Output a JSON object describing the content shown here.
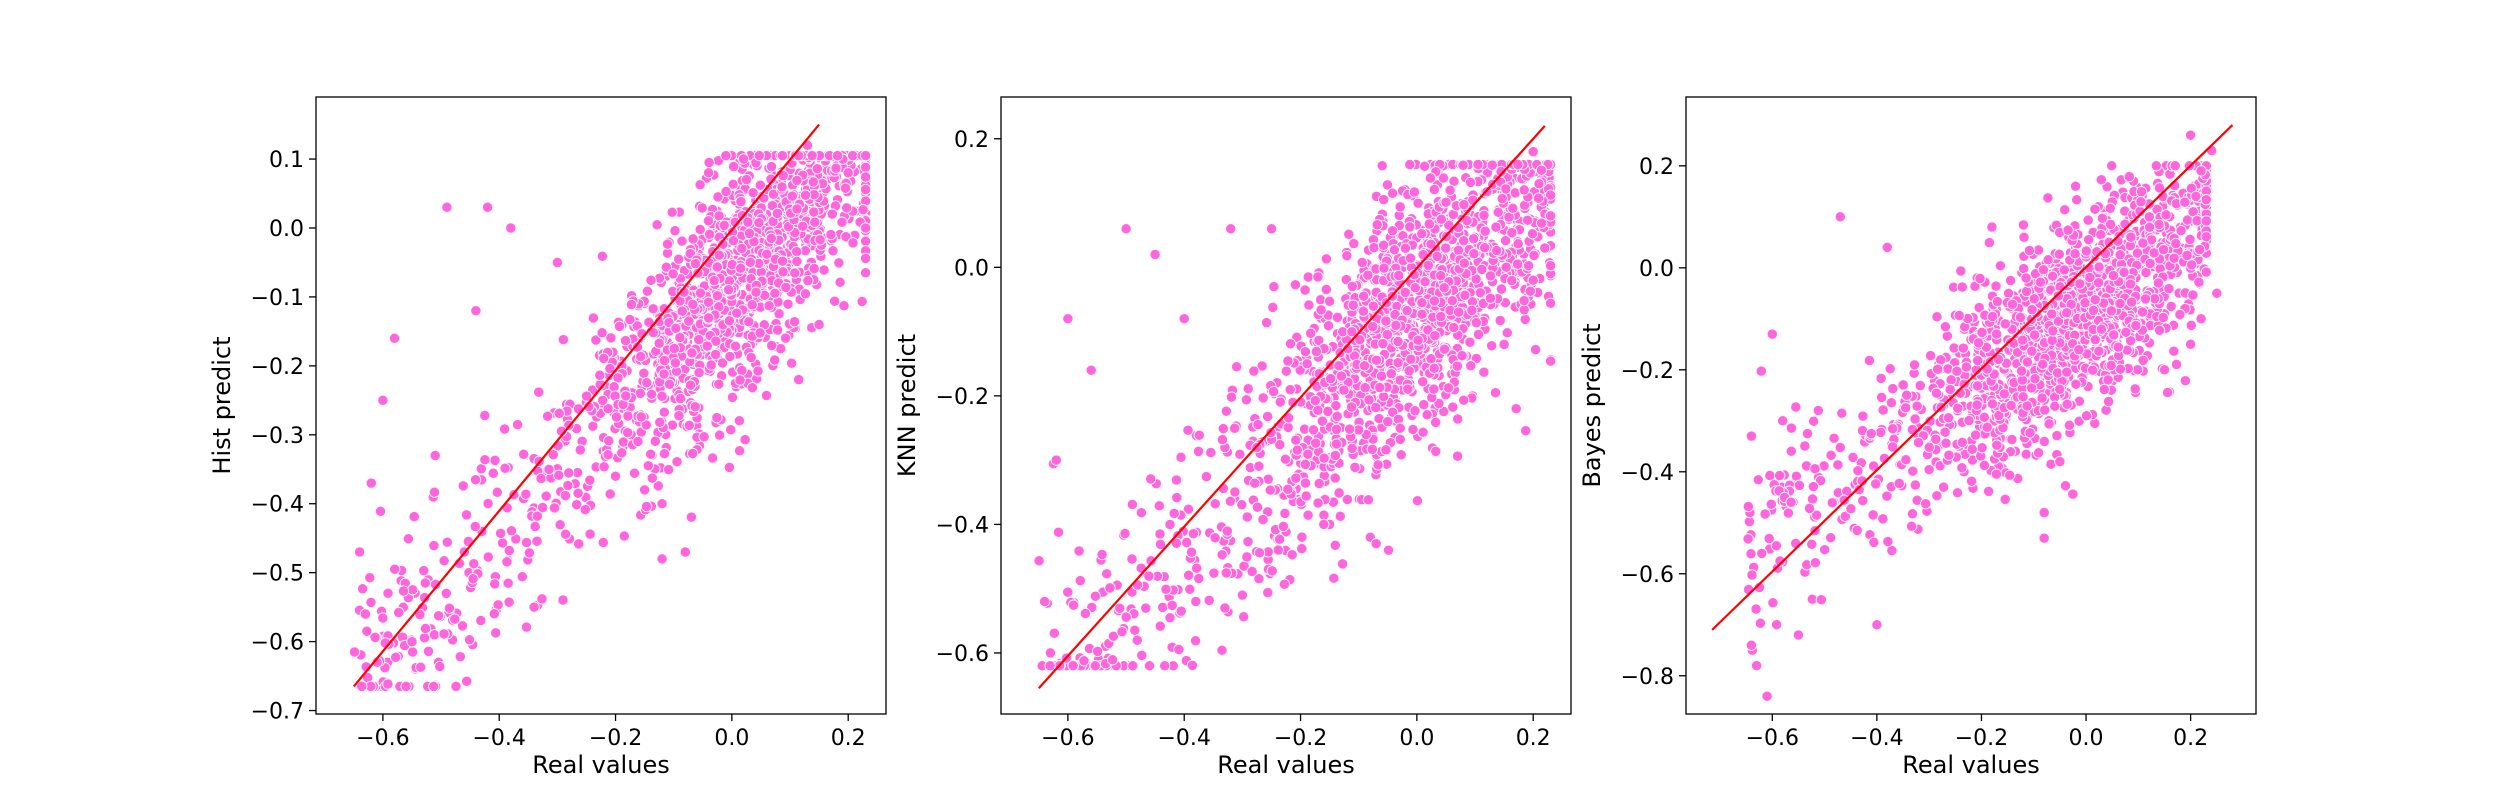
{
  "colors": {
    "points": "#ff66dd",
    "point_edge": "#ffffff",
    "identity_line": "#ff0000",
    "axes": "#000000",
    "background": "#ffffff"
  },
  "chart_data": [
    {
      "type": "scatter",
      "title": "",
      "xlabel": "Real values",
      "ylabel": "Hist predict",
      "xlim": [
        -0.715,
        0.265
      ],
      "ylim": [
        -0.705,
        0.19
      ],
      "xticks": [
        -0.6,
        -0.4,
        -0.2,
        0.0,
        0.2
      ],
      "xtick_labels": [
        "−0.6",
        "−0.4",
        "−0.2",
        "0.0",
        "0.2"
      ],
      "yticks": [
        -0.7,
        -0.6,
        -0.5,
        -0.4,
        -0.3,
        -0.2,
        -0.1,
        0.0,
        0.1
      ],
      "ytick_labels": [
        "−0.7",
        "−0.6",
        "−0.5",
        "−0.4",
        "−0.3",
        "−0.2",
        "−0.1",
        "0.0",
        "0.1"
      ],
      "grid": false,
      "legend": "none",
      "reference_line": {
        "x": [
          -0.65,
          0.15
        ],
        "y": [
          -0.665,
          0.15
        ]
      },
      "cloud": {
        "n": 1550,
        "x_range": [
          -0.65,
          0.23
        ],
        "x_center": 0.02,
        "slope": 0.92,
        "intercept": -0.075,
        "spread": 0.085,
        "y_range": [
          -0.665,
          0.105
        ],
        "seed": 11
      },
      "series": [
        {
          "points": [
            {
              "x": -0.49,
              "y": 0.03
            },
            {
              "x": -0.42,
              "y": 0.03
            },
            {
              "x": -0.38,
              "y": 0.0
            },
            {
              "x": -0.58,
              "y": -0.16
            },
            {
              "x": -0.6,
              "y": -0.25
            },
            {
              "x": -0.62,
              "y": -0.37
            },
            {
              "x": -0.64,
              "y": -0.47
            },
            {
              "x": -0.63,
              "y": -0.56
            },
            {
              "x": -0.61,
              "y": -0.63
            },
            {
              "x": -0.55,
              "y": -0.6
            },
            {
              "x": -0.12,
              "y": -0.48
            },
            {
              "x": -0.08,
              "y": -0.47
            },
            {
              "x": -0.12,
              "y": -0.4
            },
            {
              "x": -0.15,
              "y": -0.38
            },
            {
              "x": -0.34,
              "y": -0.55
            },
            {
              "x": -0.2,
              "y": -0.36
            },
            {
              "x": 0.15,
              "y": -0.14
            },
            {
              "x": 0.2,
              "y": 0.08
            },
            {
              "x": 0.23,
              "y": 0.0
            },
            {
              "x": 0.13,
              "y": 0.12
            },
            {
              "x": -0.04,
              "y": 0.08
            },
            {
              "x": 0.02,
              "y": 0.1
            },
            {
              "x": -0.44,
              "y": -0.12
            },
            {
              "x": -0.3,
              "y": -0.05
            },
            {
              "x": -0.51,
              "y": -0.33
            },
            {
              "x": -0.46,
              "y": -0.47
            }
          ]
        }
      ]
    },
    {
      "type": "scatter",
      "title": "",
      "xlabel": "Real values",
      "ylabel": "KNN predict",
      "xlim": [
        -0.715,
        0.265
      ],
      "ylim": [
        -0.695,
        0.265
      ],
      "xticks": [
        -0.6,
        -0.4,
        -0.2,
        0.0,
        0.2
      ],
      "xtick_labels": [
        "−0.6",
        "−0.4",
        "−0.2",
        "0.0",
        "0.2"
      ],
      "yticks": [
        -0.6,
        -0.4,
        -0.2,
        0.0,
        0.2
      ],
      "ytick_labels": [
        "−0.6",
        "−0.4",
        "−0.2",
        "0.0",
        "0.2"
      ],
      "grid": false,
      "legend": "none",
      "reference_line": {
        "x": [
          -0.65,
          0.22
        ],
        "y": [
          -0.655,
          0.22
        ]
      },
      "cloud": {
        "n": 1550,
        "x_range": [
          -0.65,
          0.23
        ],
        "x_center": 0.0,
        "slope": 0.9,
        "intercept": -0.07,
        "spread": 0.1,
        "y_range": [
          -0.62,
          0.16
        ],
        "seed": 23
      },
      "series": [
        {
          "points": [
            {
              "x": -0.6,
              "y": -0.08
            },
            {
              "x": -0.56,
              "y": -0.16
            },
            {
              "x": -0.5,
              "y": 0.06
            },
            {
              "x": -0.45,
              "y": 0.02
            },
            {
              "x": -0.32,
              "y": 0.06
            },
            {
              "x": -0.62,
              "y": -0.3
            },
            {
              "x": -0.64,
              "y": -0.52
            },
            {
              "x": -0.63,
              "y": -0.6
            },
            {
              "x": -0.08,
              "y": -0.42
            },
            {
              "x": -0.07,
              "y": -0.43
            },
            {
              "x": -0.15,
              "y": -0.4
            },
            {
              "x": -0.16,
              "y": -0.4
            },
            {
              "x": -0.3,
              "y": -0.51
            },
            {
              "x": -0.33,
              "y": -0.53
            },
            {
              "x": -0.38,
              "y": -0.52
            },
            {
              "x": 0.2,
              "y": 0.18
            },
            {
              "x": 0.21,
              "y": 0.13
            },
            {
              "x": 0.23,
              "y": 0.08
            },
            {
              "x": 0.22,
              "y": 0.03
            },
            {
              "x": 0.2,
              "y": -0.02
            },
            {
              "x": 0.15,
              "y": -0.12
            },
            {
              "x": -0.05,
              "y": -0.24
            },
            {
              "x": -0.25,
              "y": 0.06
            },
            {
              "x": -0.4,
              "y": -0.08
            }
          ]
        }
      ]
    },
    {
      "type": "scatter",
      "title": "",
      "xlabel": "Real values",
      "ylabel": "Bayes predict",
      "xlim": [
        -0.765,
        0.325
      ],
      "ylim": [
        -0.875,
        0.335
      ],
      "xticks": [
        -0.6,
        -0.4,
        -0.2,
        0.0,
        0.2
      ],
      "xtick_labels": [
        "−0.6",
        "−0.4",
        "−0.2",
        "0.0",
        "0.2"
      ],
      "yticks": [
        -0.8,
        -0.6,
        -0.4,
        -0.2,
        0.0,
        0.2
      ],
      "ytick_labels": [
        "−0.8",
        "−0.6",
        "−0.4",
        "−0.2",
        "0.0",
        "0.2"
      ],
      "grid": false,
      "legend": "none",
      "reference_line": {
        "x": [
          -0.715,
          0.28
        ],
        "y": [
          -0.71,
          0.28
        ]
      },
      "cloud": {
        "n": 1550,
        "x_range": [
          -0.65,
          0.23
        ],
        "x_center": -0.02,
        "slope": 0.72,
        "intercept": -0.08,
        "spread": 0.095,
        "y_range": [
          -0.75,
          0.2
        ],
        "seed": 37
      },
      "series": [
        {
          "points": [
            {
              "x": -0.6,
              "y": -0.13
            },
            {
              "x": -0.58,
              "y": -0.3
            },
            {
              "x": -0.64,
              "y": -0.33
            },
            {
              "x": -0.62,
              "y": -0.56
            },
            {
              "x": -0.63,
              "y": -0.78
            },
            {
              "x": -0.61,
              "y": -0.84
            },
            {
              "x": -0.64,
              "y": -0.74
            },
            {
              "x": -0.47,
              "y": 0.1
            },
            {
              "x": -0.38,
              "y": 0.04
            },
            {
              "x": -0.55,
              "y": -0.72
            },
            {
              "x": -0.4,
              "y": -0.7
            },
            {
              "x": -0.08,
              "y": -0.53
            },
            {
              "x": -0.08,
              "y": -0.48
            },
            {
              "x": -0.05,
              "y": -0.38
            },
            {
              "x": 0.2,
              "y": 0.26
            },
            {
              "x": 0.24,
              "y": 0.23
            },
            {
              "x": 0.22,
              "y": 0.19
            },
            {
              "x": 0.21,
              "y": 0.14
            },
            {
              "x": 0.25,
              "y": -0.05
            },
            {
              "x": 0.22,
              "y": -0.1
            },
            {
              "x": 0.2,
              "y": -0.15
            },
            {
              "x": -0.18,
              "y": 0.08
            },
            {
              "x": -0.02,
              "y": 0.16
            },
            {
              "x": 0.15,
              "y": -0.2
            }
          ]
        }
      ]
    }
  ]
}
